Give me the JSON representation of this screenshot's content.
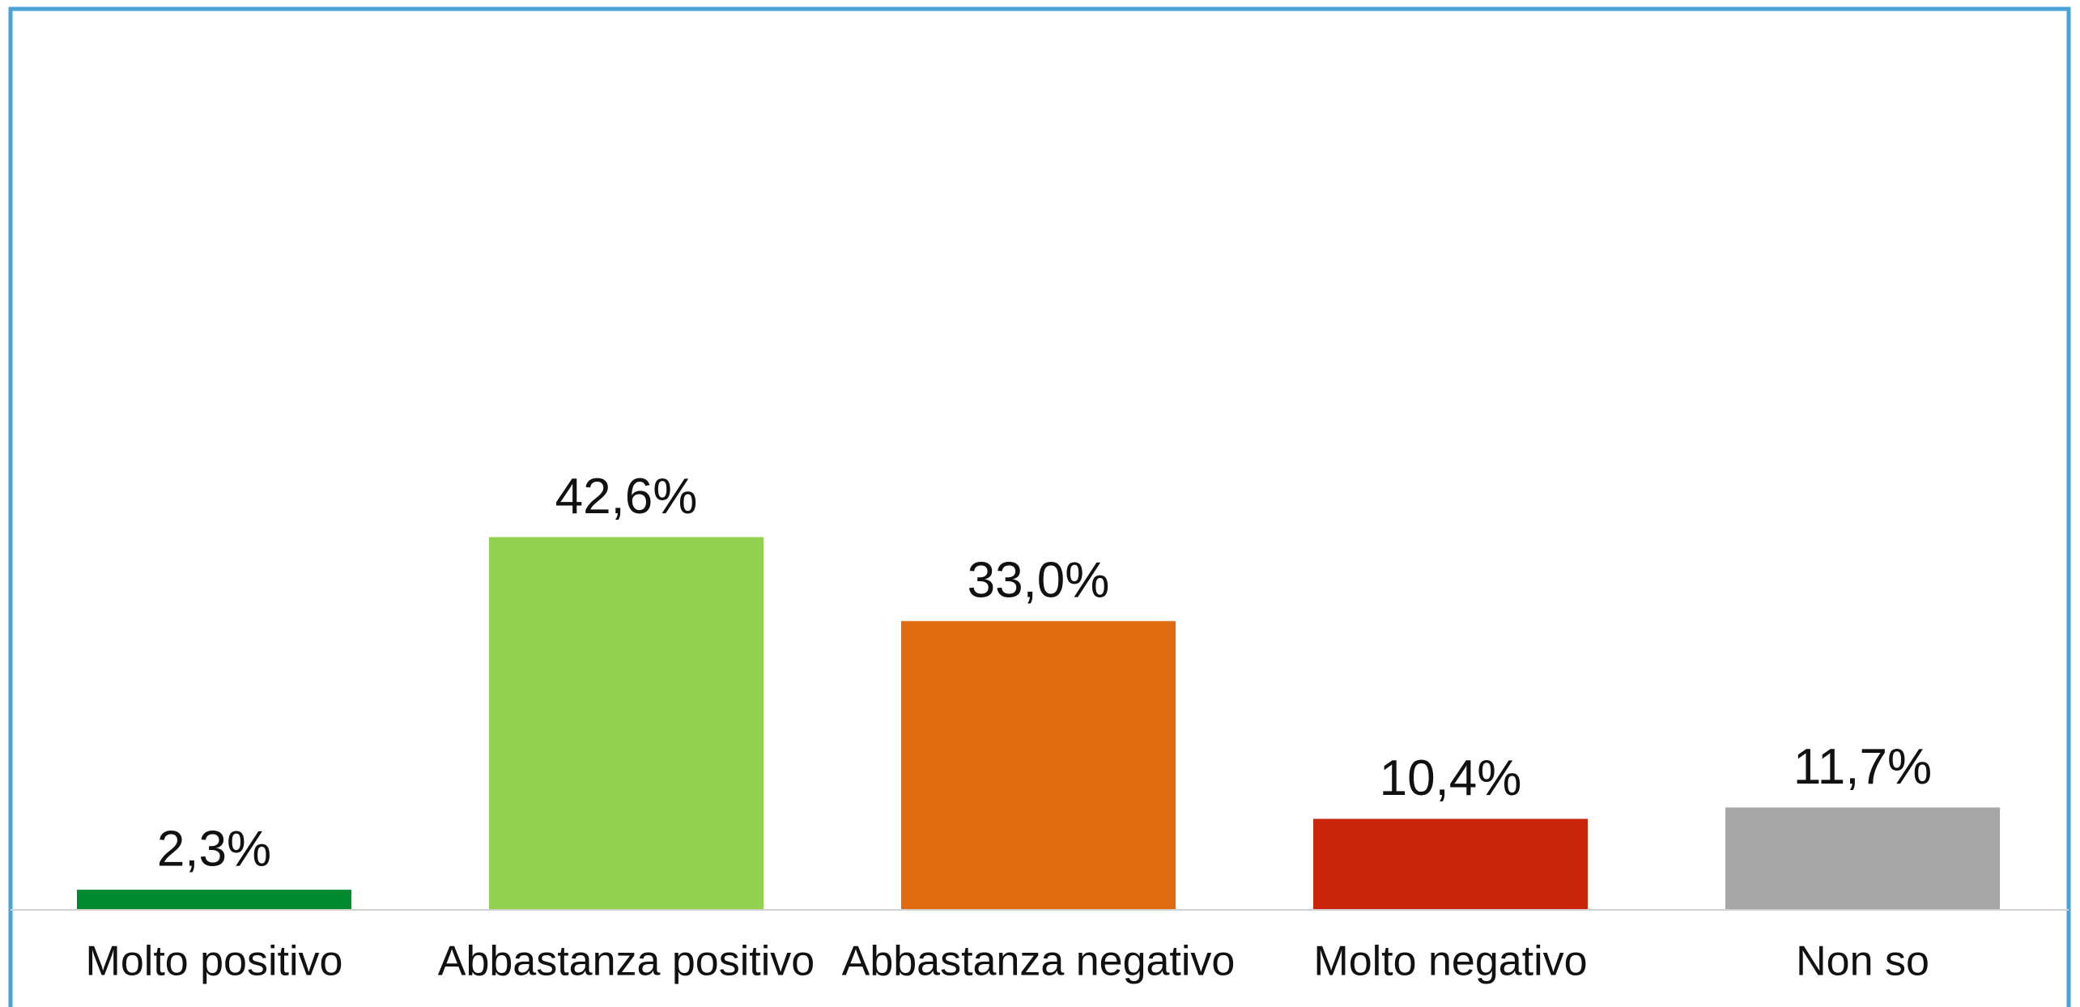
{
  "chart_data": {
    "type": "bar",
    "categories": [
      "Molto positivo",
      "Abbastanza positivo",
      "Abbastanza negativo",
      "Molto negativo",
      "Non so"
    ],
    "values": [
      2.3,
      42.6,
      33.0,
      10.4,
      11.7
    ],
    "value_labels": [
      "2,3%",
      "42,6%",
      "33,0%",
      "10,4%",
      "11,7%"
    ],
    "colors": [
      "#008a2e",
      "#92d050",
      "#e06a10",
      "#c8250a",
      "#a6a6a6"
    ],
    "ylim": [
      0,
      100
    ]
  }
}
